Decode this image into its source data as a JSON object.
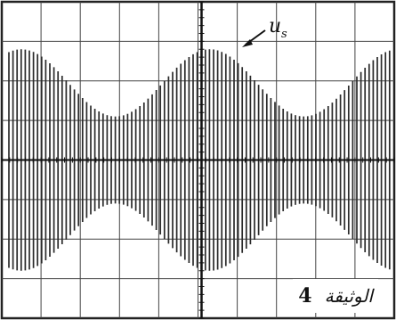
{
  "chart_data": {
    "type": "line",
    "title": "",
    "xlabel": "",
    "ylabel": "",
    "grid": true,
    "grid_divisions": {
      "x": 10,
      "y": 8
    },
    "series": [
      {
        "name": "u_s",
        "label_main": "u",
        "label_sub": "s",
        "kind": "amplitude-modulated sine",
        "envelope_max_div": 2.8,
        "envelope_min_div": 1.1,
        "envelope_period_div": 4.8,
        "first_max_at_div": 0.5
      }
    ],
    "grid_color": "#444444",
    "signal_color": "#2a2a2a"
  },
  "document": {
    "word": "الوثيقة",
    "number": "4"
  }
}
